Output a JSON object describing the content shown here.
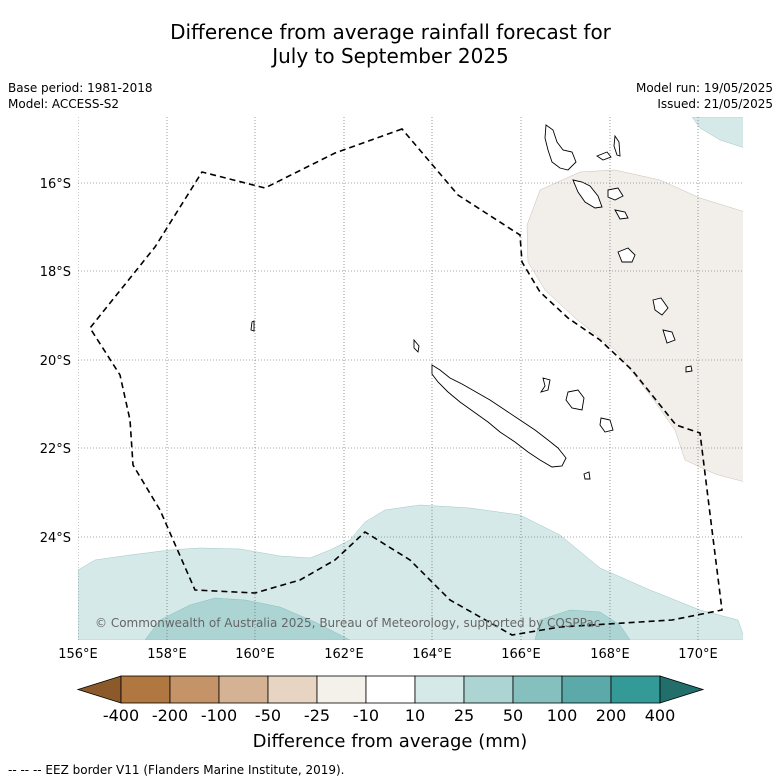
{
  "title_line1": "Difference from average rainfall forecast for",
  "title_line2": "July to September 2025",
  "meta_left": {
    "base_period": "Base period: 1981-2018",
    "model": "Model: ACCESS-S2"
  },
  "meta_right": {
    "model_run": "Model run: 19/05/2025",
    "issued": "Issued: 21/05/2025"
  },
  "map": {
    "lat_labels": [
      "16°S",
      "18°S",
      "20°S",
      "22°S",
      "24°S"
    ],
    "lon_labels": [
      "156°E",
      "158°E",
      "160°E",
      "162°E",
      "164°E",
      "166°E",
      "168°E",
      "170°E"
    ],
    "copyright": "© Commonwealth of Australia 2025, Bureau of Meteorology, supported by COSPPac"
  },
  "colorbar": {
    "title": "Difference from average (mm)",
    "tick_labels": [
      "-400",
      "-200",
      "-100",
      "-50",
      "-25",
      "-10",
      "10",
      "25",
      "50",
      "100",
      "200",
      "400"
    ],
    "colors": [
      "#8c5a2a",
      "#b07840",
      "#c49468",
      "#d5b293",
      "#e7d4c2",
      "#f4f0ea",
      "#ffffff",
      "#d5e9e8",
      "#acd4d3",
      "#85c0bf",
      "#5ba9a9",
      "#349a98",
      "#216e6b"
    ]
  },
  "footnote": "-- -- -- EEZ border V11 (Flanders Marine Institute, 2019)."
}
